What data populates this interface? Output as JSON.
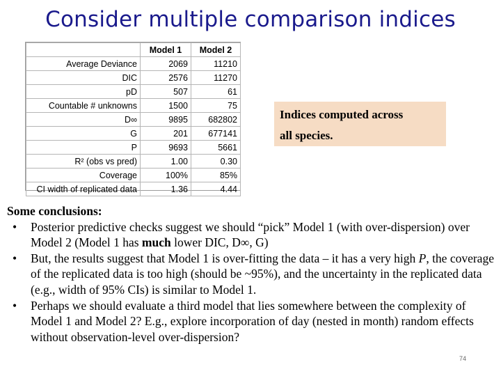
{
  "title": "Consider multiple comparison indices",
  "table": {
    "headers": [
      "",
      "Model 1",
      "Model 2"
    ],
    "rows": [
      {
        "label": "Average Deviance",
        "m1": "2069",
        "m2": "11210"
      },
      {
        "label": "DIC",
        "m1": "2576",
        "m2": "11270"
      },
      {
        "label": "pD",
        "m1": "507",
        "m2": "61"
      },
      {
        "label": "Countable # unknowns",
        "m1": "1500",
        "m2": "75"
      },
      {
        "label": "D∞",
        "m1": "9895",
        "m2": "682802"
      },
      {
        "label": "G",
        "m1": "201",
        "m2": "677141"
      },
      {
        "label": "P",
        "m1": "9693",
        "m2": "5661"
      },
      {
        "label": "R² (obs vs pred)",
        "m1": "1.00",
        "m2": "0.30"
      },
      {
        "label": "Coverage",
        "m1": "100%",
        "m2": "85%"
      },
      {
        "label": "CI width of replicated data",
        "m1": "1.36",
        "m2": "4.44"
      }
    ]
  },
  "callout": {
    "line1": "Indices computed across",
    "line2": "all species."
  },
  "conclusions": {
    "heading": "Some conclusions:",
    "bullet_char": "•",
    "b1_a": "Posterior predictive checks suggest we should “pick” Model 1 (with over-dispersion) over Model 2 (Model 1 has ",
    "b1_bold": "much",
    "b1_b": " lower DIC, D∞, G)",
    "b2_a": "But, the results suggest that Model 1 is over-fitting the data – it has a very high ",
    "b2_italic": "P",
    "b2_b": ", the coverage of the replicated data is too high (should be ~95%), and the uncertainty in the replicated data (e.g., width of 95% CIs) is similar to Model 1.",
    "b3": "Perhaps we should evaluate a third model that lies somewhere between the complexity of Model 1 and Model 2? E.g., explore incorporation of day (nested in month) random effects without observation-level over-dispersion?"
  },
  "page_number": "74"
}
